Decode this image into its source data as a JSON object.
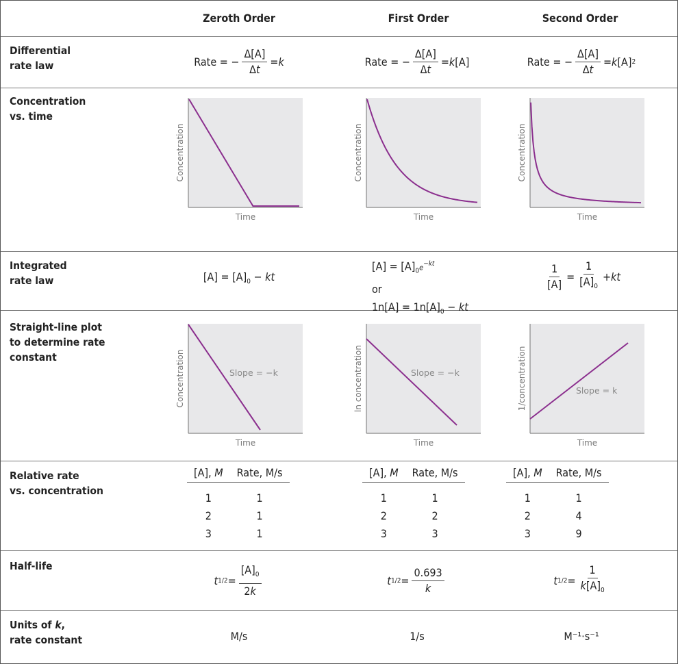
{
  "columns": [
    "Zeroth Order",
    "First Order",
    "Second Order"
  ],
  "rows": {
    "differential": "Differential\nrate law",
    "conc_time": "Concentration\nvs. time",
    "integrated": "Integrated\nrate law",
    "straight": "Straight-line plot\nto determine rate\nconstant",
    "relative": "Relative rate\nvs. concentration",
    "halflife": "Half-life",
    "units": "Units of k,\nrate constant"
  },
  "differential": {
    "rate": "Rate =",
    "minus": "−",
    "num": "Δ[A]",
    "den": "Δt",
    "rhs": [
      "= k",
      "= k[A]",
      "= k[A]"
    ],
    "rhs_sup": [
      "",
      "",
      "2"
    ]
  },
  "conc_time_plots": [
    {
      "ylabel": "Concentration",
      "xlabel": "Time",
      "curve": "linear-to-zero",
      "color": "#8b2f8e"
    },
    {
      "ylabel": "Concentration",
      "xlabel": "Time",
      "curve": "exponential-decay",
      "color": "#8b2f8e"
    },
    {
      "ylabel": "Concentration",
      "xlabel": "Time",
      "curve": "hyperbolic-decay",
      "color": "#8b2f8e"
    }
  ],
  "integrated": {
    "zeroth": "[A] = [A]0 − kt",
    "first_line1": "[A] = [A]0e−kt",
    "first_or": "or",
    "first_line2": "1n[A] = 1n[A]0 − kt",
    "second": "1/[A] = 1/[A]0 + kt"
  },
  "straight_plots": [
    {
      "ylabel": "Concentration",
      "xlabel": "Time",
      "slope": "Slope = −k",
      "trend": "decreasing",
      "color": "#8b2f8e"
    },
    {
      "ylabel": "ln concentration",
      "xlabel": "Time",
      "slope": "Slope = −k",
      "trend": "decreasing",
      "color": "#8b2f8e"
    },
    {
      "ylabel": "1/concentration",
      "xlabel": "Time",
      "slope": "Slope = k",
      "trend": "increasing",
      "color": "#8b2f8e"
    }
  ],
  "relative_tables": [
    {
      "headers": [
        "[A], M",
        "Rate, M/s"
      ],
      "rows": [
        [
          "1",
          "1"
        ],
        [
          "2",
          "1"
        ],
        [
          "3",
          "1"
        ]
      ]
    },
    {
      "headers": [
        "[A], M",
        "Rate, M/s"
      ],
      "rows": [
        [
          "1",
          "1"
        ],
        [
          "2",
          "2"
        ],
        [
          "3",
          "3"
        ]
      ]
    },
    {
      "headers": [
        "[A], M",
        "Rate, M/s"
      ],
      "rows": [
        [
          "1",
          "1"
        ],
        [
          "2",
          "4"
        ],
        [
          "3",
          "9"
        ]
      ]
    }
  ],
  "halflife": {
    "lhs": "t",
    "lhs_sub": "1/2",
    "eq": "=",
    "zeroth_num": "[A]0",
    "zeroth_den": "2k",
    "first_num": "0.693",
    "first_den": "k",
    "second_num": "1",
    "second_den": "k[A]0"
  },
  "units": [
    "M/s",
    "1/s",
    "M⁻¹·s⁻¹"
  ]
}
